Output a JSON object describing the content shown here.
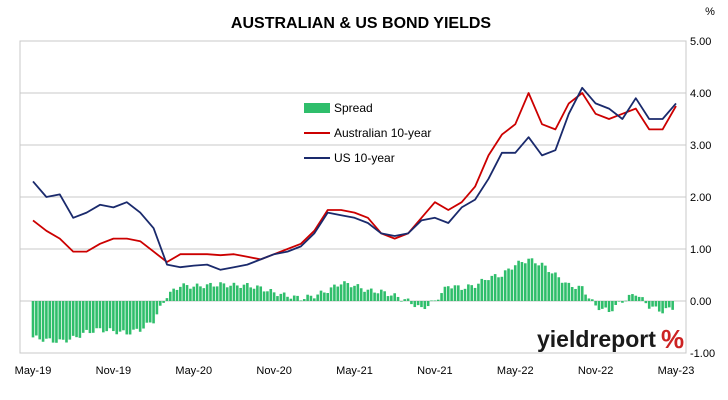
{
  "chart_data": {
    "type": "line",
    "title": "AUSTRALIAN & US BOND YIELDS",
    "y_unit": "%",
    "ylim": [
      -1.0,
      5.0
    ],
    "y_ticks": [
      "5.00",
      "4.00",
      "3.00",
      "2.00",
      "1.00",
      "0.00",
      "-1.00"
    ],
    "x_ticks": [
      "May-19",
      "Nov-19",
      "May-20",
      "Nov-20",
      "May-21",
      "Nov-21",
      "May-22",
      "Nov-22",
      "May-23"
    ],
    "grid": true,
    "legend_position": "upper-left inside plot",
    "logo": "yieldreport %",
    "colors": {
      "spread": "#2fbe6b",
      "aus": "#cc0000",
      "us": "#1a2a6c",
      "grid": "#c8c8c8",
      "logo_pct": "#cc2222"
    },
    "series": [
      {
        "name": "Spread",
        "kind": "column",
        "months": [
          "May-19",
          "Jun-19",
          "Jul-19",
          "Aug-19",
          "Sep-19",
          "Oct-19",
          "Nov-19",
          "Dec-19",
          "Jan-20",
          "Feb-20",
          "Mar-20",
          "Apr-20",
          "May-20",
          "Jun-20",
          "Jul-20",
          "Aug-20",
          "Sep-20",
          "Oct-20",
          "Nov-20",
          "Dec-20",
          "Jan-21",
          "Feb-21",
          "Mar-21",
          "Apr-21",
          "May-21",
          "Jun-21",
          "Jul-21",
          "Aug-21",
          "Sep-21",
          "Oct-21",
          "Nov-21",
          "Dec-21",
          "Jan-22",
          "Feb-22",
          "Mar-22",
          "Apr-22",
          "May-22",
          "Jun-22",
          "Jul-22",
          "Aug-22",
          "Sep-22",
          "Oct-22",
          "Nov-22",
          "Dec-22",
          "Jan-23",
          "Feb-23",
          "Mar-23",
          "Apr-23",
          "May-23"
        ],
        "values": [
          -0.7,
          -0.75,
          -0.78,
          -0.72,
          -0.6,
          -0.55,
          -0.58,
          -0.62,
          -0.55,
          -0.38,
          0.1,
          0.3,
          0.28,
          0.3,
          0.32,
          0.3,
          0.3,
          0.25,
          0.16,
          0.1,
          0.05,
          0.1,
          0.2,
          0.35,
          0.3,
          0.2,
          0.18,
          0.1,
          0.0,
          -0.15,
          0.0,
          0.3,
          0.25,
          0.3,
          0.45,
          0.5,
          0.7,
          0.8,
          0.7,
          0.5,
          0.3,
          0.25,
          -0.1,
          -0.2,
          0.0,
          0.15,
          -0.1,
          -0.2,
          -0.1
        ]
      },
      {
        "name": "Australian 10-year",
        "kind": "line",
        "months": [
          "May-19",
          "Jun-19",
          "Jul-19",
          "Aug-19",
          "Sep-19",
          "Oct-19",
          "Nov-19",
          "Dec-19",
          "Jan-20",
          "Feb-20",
          "Mar-20",
          "Apr-20",
          "May-20",
          "Jun-20",
          "Jul-20",
          "Aug-20",
          "Sep-20",
          "Oct-20",
          "Nov-20",
          "Dec-20",
          "Jan-21",
          "Feb-21",
          "Mar-21",
          "Apr-21",
          "May-21",
          "Jun-21",
          "Jul-21",
          "Aug-21",
          "Sep-21",
          "Oct-21",
          "Nov-21",
          "Dec-21",
          "Jan-22",
          "Feb-22",
          "Mar-22",
          "Apr-22",
          "May-22",
          "Jun-22",
          "Jul-22",
          "Aug-22",
          "Sep-22",
          "Oct-22",
          "Nov-22",
          "Dec-22",
          "Jan-23",
          "Feb-23",
          "Mar-23",
          "Apr-23",
          "May-23"
        ],
        "values": [
          1.55,
          1.35,
          1.2,
          0.95,
          0.95,
          1.1,
          1.2,
          1.2,
          1.15,
          0.95,
          0.75,
          0.9,
          0.9,
          0.9,
          0.88,
          0.9,
          0.85,
          0.8,
          0.9,
          1.0,
          1.1,
          1.35,
          1.75,
          1.75,
          1.7,
          1.6,
          1.3,
          1.2,
          1.3,
          1.6,
          1.9,
          1.75,
          1.9,
          2.2,
          2.8,
          3.2,
          3.4,
          4.0,
          3.4,
          3.3,
          3.8,
          4.0,
          3.6,
          3.5,
          3.6,
          3.7,
          3.3,
          3.3,
          3.75
        ]
      },
      {
        "name": "US 10-year",
        "kind": "line",
        "months": [
          "May-19",
          "Jun-19",
          "Jul-19",
          "Aug-19",
          "Sep-19",
          "Oct-19",
          "Nov-19",
          "Dec-19",
          "Jan-20",
          "Feb-20",
          "Mar-20",
          "Apr-20",
          "May-20",
          "Jun-20",
          "Jul-20",
          "Aug-20",
          "Sep-20",
          "Oct-20",
          "Nov-20",
          "Dec-20",
          "Jan-21",
          "Feb-21",
          "Mar-21",
          "Apr-21",
          "May-21",
          "Jun-21",
          "Jul-21",
          "Aug-21",
          "Sep-21",
          "Oct-21",
          "Nov-21",
          "Dec-21",
          "Jan-22",
          "Feb-22",
          "Mar-22",
          "Apr-22",
          "May-22",
          "Jun-22",
          "Jul-22",
          "Aug-22",
          "Sep-22",
          "Oct-22",
          "Nov-22",
          "Dec-22",
          "Jan-23",
          "Feb-23",
          "Mar-23",
          "Apr-23",
          "May-23"
        ],
        "values": [
          2.3,
          2.0,
          2.05,
          1.6,
          1.7,
          1.85,
          1.8,
          1.9,
          1.7,
          1.4,
          0.7,
          0.65,
          0.68,
          0.7,
          0.6,
          0.65,
          0.7,
          0.8,
          0.9,
          0.95,
          1.05,
          1.3,
          1.7,
          1.65,
          1.6,
          1.5,
          1.3,
          1.25,
          1.3,
          1.55,
          1.6,
          1.5,
          1.8,
          1.95,
          2.35,
          2.85,
          2.85,
          3.15,
          2.8,
          2.9,
          3.6,
          4.1,
          3.8,
          3.7,
          3.5,
          3.9,
          3.5,
          3.5,
          3.8
        ]
      }
    ]
  }
}
